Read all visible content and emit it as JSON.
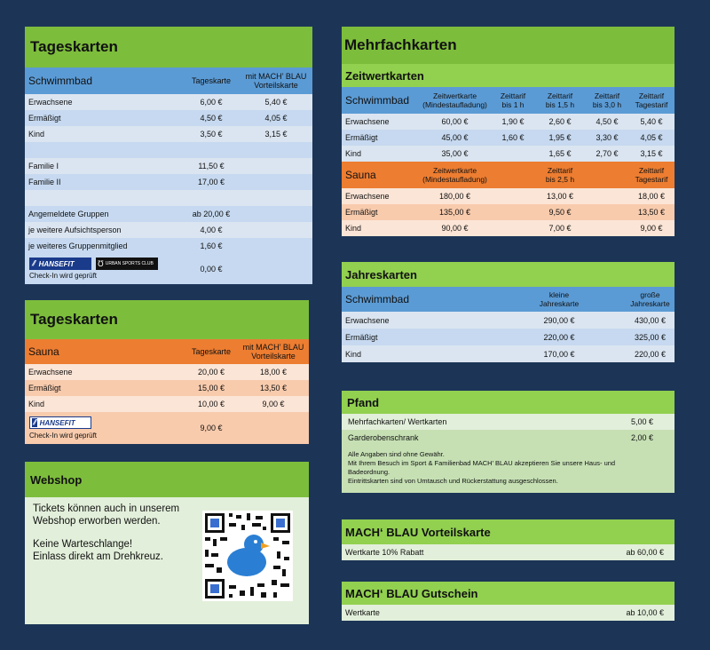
{
  "tk_schwimmbad": {
    "title": "Tageskarten",
    "head": {
      "label": "Schwimmbad",
      "col1": "Tageskarte",
      "col2a": "mit MACH’ BLAU",
      "col2b": "Vorteilskarte"
    },
    "rows": [
      {
        "label": "Erwachsene",
        "v1": "6,00 €",
        "v2": "5,40 €"
      },
      {
        "label": "Ermäßigt",
        "v1": "4,50 €",
        "v2": "4,05 €"
      },
      {
        "label": "Kind",
        "v1": "3,50 €",
        "v2": "3,15 €"
      },
      {
        "label": "",
        "v1": "",
        "v2": ""
      },
      {
        "label": "Familie I",
        "v1": "11,50 €",
        "v2": ""
      },
      {
        "label": "Familie II",
        "v1": "17,00 €",
        "v2": ""
      },
      {
        "label": "",
        "v1": "",
        "v2": ""
      },
      {
        "label": "Angemeldete Gruppen",
        "v1": "ab 20,00 €",
        "v2": ""
      },
      {
        "label": "je weitere Aufsichtsperson",
        "v1": "4,00 €",
        "v2": ""
      },
      {
        "label": "je weiteres Gruppenmitglied",
        "v1": "1,60 €",
        "v2": ""
      }
    ],
    "partner": {
      "hansefit": "HANSEFIT",
      "usc": "URBAN SPORTS CLUB",
      "note": "Check-In wird geprüft",
      "value": "0,00 €"
    }
  },
  "tk_sauna": {
    "title": "Tageskarten",
    "head": {
      "label": "Sauna",
      "col1": "Tageskarte",
      "col2a": "mit MACH’ BLAU",
      "col2b": "Vorteilskarte"
    },
    "rows": [
      {
        "label": "Erwachsene",
        "v1": "20,00 €",
        "v2": "18,00 €"
      },
      {
        "label": "Ermäßigt",
        "v1": "15,00 €",
        "v2": "13,50 €"
      },
      {
        "label": "Kind",
        "v1": "10,00 €",
        "v2": "9,00 €"
      }
    ],
    "partner": {
      "hansefit": "HANSEFIT",
      "note": "Check-In wird geprüft",
      "value": "9,00 €"
    }
  },
  "webshop": {
    "title": "Webshop",
    "line1": "Tickets können auch in unserem",
    "line2": "Webshop erworben werden.",
    "line3": "Keine Warteschlange!",
    "line4": "Einlass direkt am Drehkreuz."
  },
  "mehrfach": {
    "title": "Mehrfachkarten",
    "subtitle": "Zeitwertkarten",
    "schwimm_head": {
      "label": "Schwimmbad",
      "c1a": "Zeitwertkarte",
      "c1b": "(Mindestaufladung)",
      "c2a": "Zeittarif",
      "c2b": "bis 1 h",
      "c3a": "Zeittarif",
      "c3b": "bis 1,5 h",
      "c4a": "Zeittarif",
      "c4b": "bis 3,0 h",
      "c5a": "Zeittarif",
      "c5b": "Tagestarif"
    },
    "schwimm_rows": [
      {
        "label": "Erwachsene",
        "v1": "60,00 €",
        "v2": "1,90 €",
        "v3": "2,60 €",
        "v4": "4,50 €",
        "v5": "5,40 €"
      },
      {
        "label": "Ermäßigt",
        "v1": "45,00 €",
        "v2": "1,60 €",
        "v3": "1,95 €",
        "v4": "3,30 €",
        "v5": "4,05 €"
      },
      {
        "label": "Kind",
        "v1": "35,00 €",
        "v2": "",
        "v3": "1,65 €",
        "v4": "2,70 €",
        "v5": "3,15 €"
      }
    ],
    "sauna_head": {
      "label": "Sauna",
      "c1a": "Zeitwertkarte",
      "c1b": "(Mindestaufladung)",
      "c3a": "Zeittarif",
      "c3b": "bis 2,5 h",
      "c5a": "Zeittarif",
      "c5b": "Tagestarif"
    },
    "sauna_rows": [
      {
        "label": "Erwachsene",
        "v1": "180,00 €",
        "v3": "13,00 €",
        "v5": "18,00 €"
      },
      {
        "label": "Ermäßigt",
        "v1": "135,00 €",
        "v3": "9,50 €",
        "v5": "13,50 €"
      },
      {
        "label": "Kind",
        "v1": "90,00 €",
        "v3": "7,00 €",
        "v5": "9,00 €"
      }
    ]
  },
  "jahres": {
    "title": "Jahreskarten",
    "head": {
      "label": "Schwimmbad",
      "c1a": "kleine",
      "c1b": "Jahreskarte",
      "c2a": "große",
      "c2b": "Jahreskarte"
    },
    "rows": [
      {
        "label": "Erwachsene",
        "v1": "290,00 €",
        "v2": "430,00 €"
      },
      {
        "label": "Ermäßigt",
        "v1": "220,00 €",
        "v2": "325,00 €"
      },
      {
        "label": "Kind",
        "v1": "170,00 €",
        "v2": "220,00 €"
      }
    ]
  },
  "pfand": {
    "title": "Pfand",
    "rows": [
      {
        "label": "Mehrfachkarten/ Wertkarten",
        "v": "5,00 €"
      },
      {
        "label": "Garderobenschrank",
        "v": "2,00 €"
      }
    ],
    "note1": "Alle Angaben sind ohne Gewähr.",
    "note2": "Mit Ihrem Besuch im Sport & Familienbad MACH’ BLAU akzeptieren Sie unsere Haus- und",
    "note3": "Badeordnung.",
    "note4": "Eintrittskarten sind von Umtausch und Rückerstattung ausgeschlossen."
  },
  "vorteil": {
    "title": "MACH‘ BLAU Vorteilskarte",
    "label": "Wertkarte 10% Rabatt",
    "value": "ab 60,00 €"
  },
  "gutschein": {
    "title": "MACH‘ BLAU Gutschein",
    "label": "Wertkarte",
    "value": "ab 10,00 €"
  }
}
